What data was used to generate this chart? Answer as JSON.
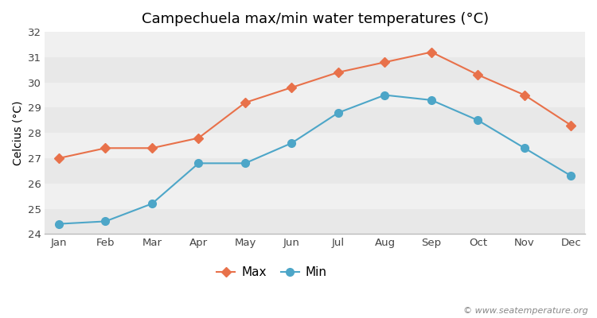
{
  "title": "Campechuela max/min water temperatures (°C)",
  "ylabel": "Celcius (°C)",
  "months": [
    "Jan",
    "Feb",
    "Mar",
    "Apr",
    "May",
    "Jun",
    "Jul",
    "Aug",
    "Sep",
    "Oct",
    "Nov",
    "Dec"
  ],
  "max_values": [
    27.0,
    27.4,
    27.4,
    27.8,
    29.2,
    29.8,
    30.4,
    30.8,
    31.2,
    30.3,
    29.5,
    28.3
  ],
  "min_values": [
    24.4,
    24.5,
    25.2,
    26.8,
    26.8,
    27.6,
    28.8,
    29.5,
    29.3,
    28.5,
    27.4,
    26.3
  ],
  "max_color": "#e8714a",
  "min_color": "#4da6c8",
  "fig_bg_color": "#ffffff",
  "band_colors": [
    "#e8e8e8",
    "#f0f0f0"
  ],
  "ylim": [
    24,
    32
  ],
  "yticks": [
    24,
    25,
    26,
    27,
    28,
    29,
    30,
    31,
    32
  ],
  "legend_labels": [
    "Max",
    "Min"
  ],
  "watermark": "© www.seatemperature.org",
  "title_fontsize": 13,
  "label_fontsize": 10,
  "tick_fontsize": 9.5,
  "watermark_fontsize": 8
}
